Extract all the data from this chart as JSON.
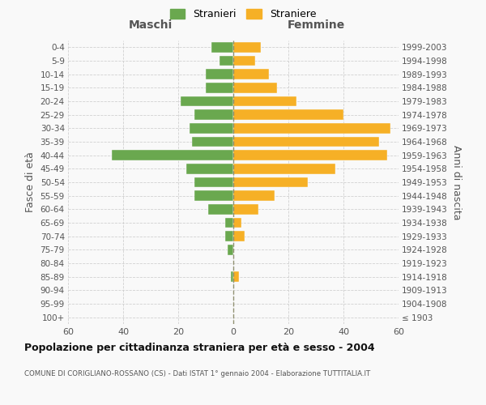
{
  "age_groups": [
    "100+",
    "95-99",
    "90-94",
    "85-89",
    "80-84",
    "75-79",
    "70-74",
    "65-69",
    "60-64",
    "55-59",
    "50-54",
    "45-49",
    "40-44",
    "35-39",
    "30-34",
    "25-29",
    "20-24",
    "15-19",
    "10-14",
    "5-9",
    "0-4"
  ],
  "birth_years": [
    "≤ 1903",
    "1904-1908",
    "1909-1913",
    "1914-1918",
    "1919-1923",
    "1924-1928",
    "1929-1933",
    "1934-1938",
    "1939-1943",
    "1944-1948",
    "1949-1953",
    "1954-1958",
    "1959-1963",
    "1964-1968",
    "1969-1973",
    "1974-1978",
    "1979-1983",
    "1984-1988",
    "1989-1993",
    "1994-1998",
    "1999-2003"
  ],
  "maschi": [
    0,
    0,
    0,
    1,
    0,
    2,
    3,
    3,
    9,
    14,
    14,
    17,
    44,
    15,
    16,
    14,
    19,
    10,
    10,
    5,
    8
  ],
  "femmine": [
    0,
    0,
    0,
    2,
    0,
    0,
    4,
    3,
    9,
    15,
    27,
    37,
    56,
    53,
    57,
    40,
    23,
    16,
    13,
    8,
    10
  ],
  "color_maschi": "#6aa84f",
  "color_femmine": "#f6b026",
  "background_color": "#f9f9f9",
  "grid_color": "#cccccc",
  "title": "Popolazione per cittadinanza straniera per età e sesso - 2004",
  "subtitle": "COMUNE DI CORIGLIANO-ROSSANO (CS) - Dati ISTAT 1° gennaio 2004 - Elaborazione TUTTITALIA.IT",
  "xlabel_left": "Maschi",
  "xlabel_right": "Femmine",
  "ylabel_left": "Fasce di età",
  "ylabel_right": "Anni di nascita",
  "legend_maschi": "Stranieri",
  "legend_femmine": "Straniere",
  "xlim": 60
}
